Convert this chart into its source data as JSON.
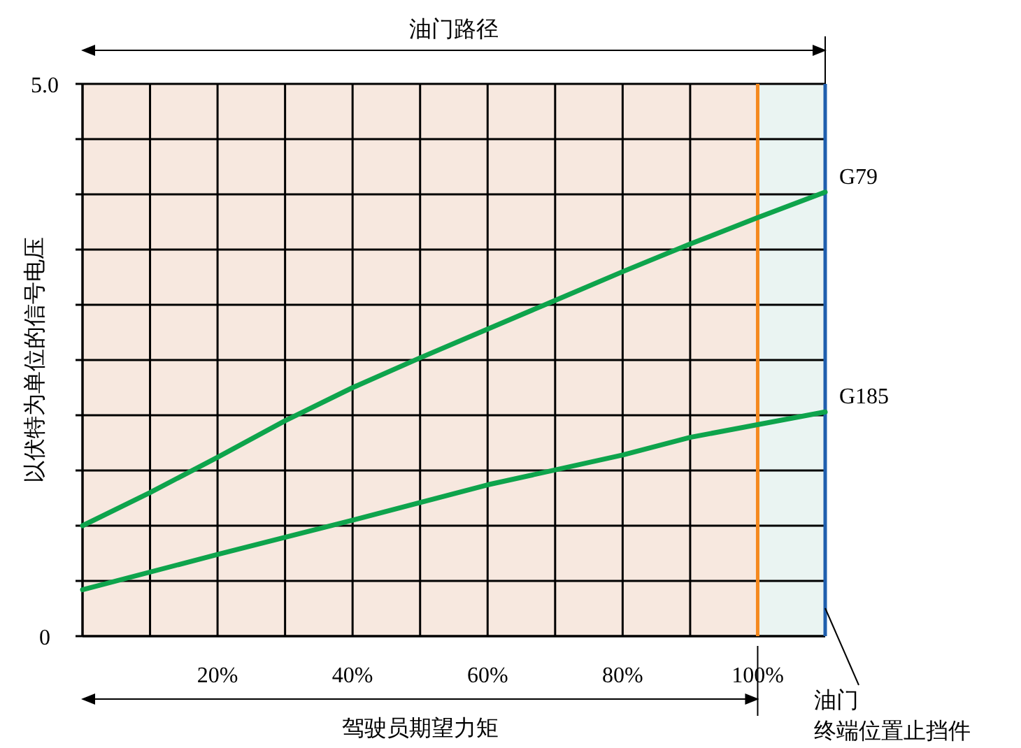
{
  "chart_data": {
    "type": "line",
    "ylabel": "以伏特为单位的信号电压",
    "x": [
      0,
      10,
      20,
      30,
      40,
      50,
      60,
      70,
      80,
      90,
      100,
      110
    ],
    "series": [
      {
        "name": "G79",
        "color": "#0ea44c",
        "values": [
          1.0,
          1.3,
          1.62,
          1.95,
          2.25,
          2.52,
          2.78,
          3.04,
          3.3,
          3.55,
          3.79,
          4.02
        ]
      },
      {
        "name": "G185",
        "color": "#0ea44c",
        "x": [
          0,
          20,
          40,
          60,
          80,
          90,
          110
        ],
        "values": [
          0.42,
          0.74,
          1.05,
          1.37,
          1.64,
          1.8,
          2.03
        ]
      }
    ],
    "xlim": [
      0,
      110
    ],
    "xticks": [
      {
        "value": 0,
        "label": null
      },
      {
        "value": 10,
        "label": null
      },
      {
        "value": 20,
        "label": "20%"
      },
      {
        "value": 30,
        "label": null
      },
      {
        "value": 40,
        "label": "40%"
      },
      {
        "value": 50,
        "label": null
      },
      {
        "value": 60,
        "label": "60%"
      },
      {
        "value": 70,
        "label": null
      },
      {
        "value": 80,
        "label": "80%"
      },
      {
        "value": 90,
        "label": null
      },
      {
        "value": 100,
        "label": "100%"
      },
      {
        "value": 110,
        "label": null
      }
    ],
    "ylim": [
      0,
      5
    ],
    "yticks": [
      {
        "value": 0,
        "label": "0"
      },
      {
        "value": 0.5,
        "label": null
      },
      {
        "value": 1,
        "label": null
      },
      {
        "value": 1.5,
        "label": null
      },
      {
        "value": 2,
        "label": null
      },
      {
        "value": 2.5,
        "label": null
      },
      {
        "value": 3,
        "label": null
      },
      {
        "value": 3.5,
        "label": null
      },
      {
        "value": 4,
        "label": null
      },
      {
        "value": 4.5,
        "label": null
      },
      {
        "value": 5,
        "label": "5.0"
      }
    ],
    "grid": true,
    "marker": "none",
    "line_style": "solid",
    "xlabel": "驾驶员期望力矩",
    "bands": [
      {
        "axis": "x",
        "from": 0,
        "to": 100,
        "color": "#f7e8df"
      },
      {
        "axis": "x",
        "from": 100,
        "to": 110,
        "color": "#eaf4f2"
      }
    ],
    "ref_lines": [
      {
        "axis": "x",
        "value": 100,
        "color": "#f5891f"
      },
      {
        "axis": "x",
        "value": 110,
        "color": "#1f5fae"
      }
    ],
    "annotations": [
      "油门路径",
      {
        "text": "油门",
        "x": 110,
        "y": 0
      },
      "终端位置止挡件"
    ]
  }
}
